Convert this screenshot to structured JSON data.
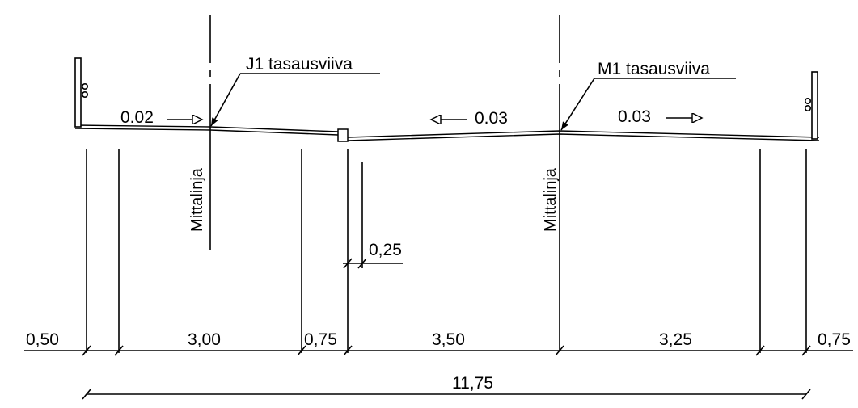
{
  "labels": {
    "j1_profile": "J1 tasausviiva",
    "m1_profile": "M1 tasausviiva",
    "centerline_left": "Mittalinja",
    "centerline_right": "Mittalinja"
  },
  "slopes": {
    "left": "0.02",
    "middle": "0.03",
    "right": "0.03"
  },
  "offset": "0,25",
  "dimensions": {
    "segments": [
      "0,50",
      "3,00",
      "0,75",
      "3,50",
      "3,25",
      "0,75"
    ],
    "total": "11,75"
  }
}
